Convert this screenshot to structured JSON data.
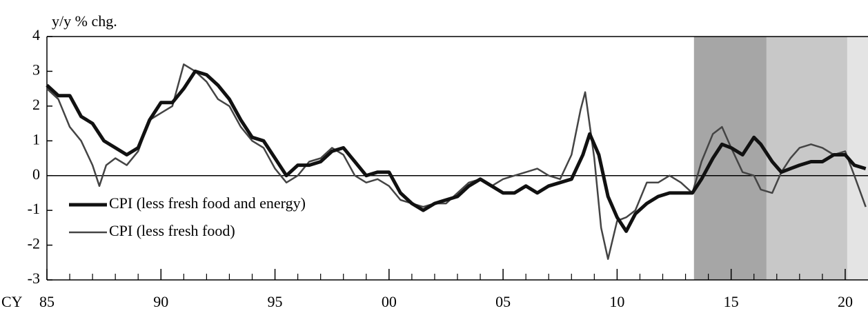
{
  "chart_data": {
    "type": "line",
    "y_label": "y/y % chg.",
    "x_label": "CY",
    "xlim": [
      1985,
      2021
    ],
    "ylim": [
      -3,
      4
    ],
    "yticks": [
      -3,
      -2,
      -1,
      0,
      1,
      2,
      3,
      4
    ],
    "xticks": [
      {
        "value": 1985,
        "label": "85"
      },
      {
        "value": 1990,
        "label": "90"
      },
      {
        "value": 1995,
        "label": "95"
      },
      {
        "value": 2000,
        "label": "00"
      },
      {
        "value": 2005,
        "label": "05"
      },
      {
        "value": 2010,
        "label": "10"
      },
      {
        "value": 2015,
        "label": "15"
      },
      {
        "value": 2020,
        "label": "20"
      }
    ],
    "xminorticks": [
      1986,
      1987,
      1988,
      1989,
      1991,
      1992,
      1993,
      1994,
      1996,
      1997,
      1998,
      1999,
      2001,
      2002,
      2003,
      2004,
      2006,
      2007,
      2008,
      2009,
      2011,
      2012,
      2013,
      2014,
      2016,
      2017,
      2018,
      2019
    ],
    "shaded_regions": [
      {
        "start": 2013.37,
        "end": 2016.55,
        "color": "#a6a6a6"
      },
      {
        "start": 2016.55,
        "end": 2020.09,
        "color": "#c8c8c8"
      },
      {
        "start": 2020.09,
        "end": 2021,
        "color": "#e4e4e4"
      }
    ],
    "zero_line": true,
    "series": [
      {
        "name": "CPI (less fresh food and energy)",
        "color": "#111111",
        "width": 5,
        "x": [
          1985.0,
          1985.5,
          1986.0,
          1986.5,
          1987.0,
          1987.5,
          1988.0,
          1988.5,
          1989.0,
          1989.5,
          1990.0,
          1990.5,
          1991.0,
          1991.5,
          1992.0,
          1992.5,
          1993.0,
          1993.5,
          1994.0,
          1994.5,
          1995.0,
          1995.5,
          1996.0,
          1996.5,
          1997.0,
          1997.5,
          1998.0,
          1998.5,
          1999.0,
          1999.5,
          2000.0,
          2000.5,
          2001.0,
          2001.5,
          2002.0,
          2002.5,
          2003.0,
          2003.5,
          2004.0,
          2004.5,
          2005.0,
          2005.5,
          2006.0,
          2006.5,
          2007.0,
          2007.5,
          2008.0,
          2008.5,
          2008.8,
          2009.2,
          2009.6,
          2010.0,
          2010.4,
          2010.8,
          2011.3,
          2011.8,
          2012.3,
          2012.8,
          2013.3,
          2013.7,
          2014.2,
          2014.6,
          2015.0,
          2015.5,
          2016.0,
          2016.3,
          2016.8,
          2017.2,
          2017.6,
          2018.0,
          2018.5,
          2019.0,
          2019.5,
          2020.0,
          2020.4,
          2020.9
        ],
        "values": [
          2.6,
          2.3,
          2.3,
          1.7,
          1.5,
          1.0,
          0.8,
          0.6,
          0.8,
          1.6,
          2.1,
          2.1,
          2.5,
          3.0,
          2.9,
          2.6,
          2.2,
          1.6,
          1.1,
          1.0,
          0.5,
          0.0,
          0.3,
          0.3,
          0.4,
          0.7,
          0.8,
          0.4,
          0.0,
          0.1,
          0.1,
          -0.5,
          -0.8,
          -1.0,
          -0.8,
          -0.7,
          -0.6,
          -0.3,
          -0.1,
          -0.3,
          -0.5,
          -0.5,
          -0.3,
          -0.5,
          -0.3,
          -0.2,
          -0.1,
          0.6,
          1.2,
          0.6,
          -0.6,
          -1.2,
          -1.6,
          -1.1,
          -0.8,
          -0.6,
          -0.5,
          -0.5,
          -0.5,
          -0.1,
          0.5,
          0.9,
          0.8,
          0.6,
          1.1,
          0.9,
          0.4,
          0.1,
          0.2,
          0.3,
          0.4,
          0.4,
          0.6,
          0.6,
          0.3,
          0.2
        ]
      },
      {
        "name": "CPI (less fresh food)",
        "color": "#444444",
        "width": 2.5,
        "x": [
          1985.0,
          1985.5,
          1986.0,
          1986.5,
          1987.0,
          1987.3,
          1987.6,
          1988.0,
          1988.5,
          1989.0,
          1989.5,
          1990.0,
          1990.5,
          1991.0,
          1991.5,
          1992.0,
          1992.5,
          1993.0,
          1993.5,
          1994.0,
          1994.5,
          1995.0,
          1995.5,
          1996.0,
          1996.5,
          1997.0,
          1997.5,
          1998.0,
          1998.5,
          1999.0,
          1999.5,
          2000.0,
          2000.5,
          2001.0,
          2001.5,
          2002.0,
          2002.5,
          2003.0,
          2003.5,
          2004.0,
          2004.5,
          2005.0,
          2005.5,
          2006.0,
          2006.5,
          2007.0,
          2007.5,
          2008.0,
          2008.4,
          2008.6,
          2009.0,
          2009.3,
          2009.6,
          2010.0,
          2010.4,
          2010.8,
          2011.3,
          2011.8,
          2012.3,
          2012.8,
          2013.3,
          2013.7,
          2014.2,
          2014.6,
          2015.0,
          2015.5,
          2016.0,
          2016.3,
          2016.8,
          2017.2,
          2017.6,
          2018.0,
          2018.5,
          2019.0,
          2019.5,
          2020.0,
          2020.4,
          2020.9
        ],
        "values": [
          2.5,
          2.2,
          1.4,
          1.0,
          0.3,
          -0.3,
          0.3,
          0.5,
          0.3,
          0.7,
          1.6,
          1.8,
          2.0,
          3.2,
          3.0,
          2.7,
          2.2,
          2.0,
          1.4,
          1.0,
          0.8,
          0.2,
          -0.2,
          0.0,
          0.4,
          0.5,
          0.8,
          0.6,
          0.0,
          -0.2,
          -0.1,
          -0.3,
          -0.7,
          -0.8,
          -0.9,
          -0.8,
          -0.8,
          -0.5,
          -0.2,
          -0.1,
          -0.3,
          -0.1,
          0.0,
          0.1,
          0.2,
          0.0,
          -0.1,
          0.6,
          1.9,
          2.4,
          0.5,
          -1.5,
          -2.4,
          -1.3,
          -1.2,
          -1.0,
          -0.2,
          -0.2,
          0.0,
          -0.2,
          -0.5,
          0.4,
          1.2,
          1.4,
          0.8,
          0.1,
          0.0,
          -0.4,
          -0.5,
          0.1,
          0.5,
          0.8,
          0.9,
          0.8,
          0.6,
          0.7,
          0.0,
          -0.9
        ]
      }
    ]
  }
}
